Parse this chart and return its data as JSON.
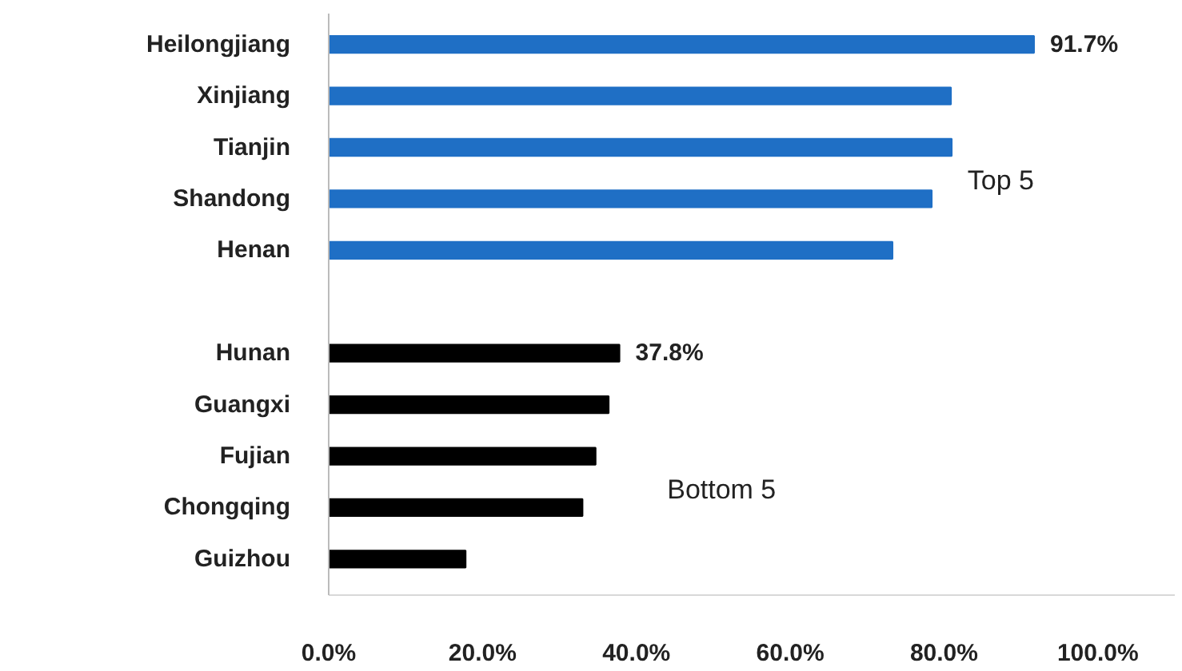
{
  "chart_data": {
    "type": "bar",
    "orientation": "horizontal",
    "categories": [
      "Heilongjiang",
      "Xinjiang",
      "Tianjin",
      "Shandong",
      "Henan",
      null,
      "Hunan",
      "Guangxi",
      "Fujian",
      "Chongqing",
      "Guizhou"
    ],
    "values": [
      91.7,
      80.9,
      81.0,
      78.4,
      73.3,
      null,
      37.8,
      36.4,
      34.7,
      33.0,
      17.8
    ],
    "colors": [
      "#1f6fc5",
      "#1f6fc5",
      "#1f6fc5",
      "#1f6fc5",
      "#1f6fc5",
      null,
      "#000000",
      "#000000",
      "#000000",
      "#000000",
      "#000000"
    ],
    "value_labels": [
      "91.7%",
      null,
      null,
      null,
      null,
      null,
      "37.8%",
      null,
      null,
      null,
      null
    ],
    "xlim": [
      0,
      110
    ],
    "xticks": [
      {
        "value": 0,
        "label": "0.0%"
      },
      {
        "value": 20,
        "label": "20.0%"
      },
      {
        "value": 40,
        "label": "40.0%"
      },
      {
        "value": 60,
        "label": "60.0%"
      },
      {
        "value": 80,
        "label": "80.0%"
      },
      {
        "value": 100,
        "label": "100.0%"
      }
    ],
    "annotations": [
      "Top 5",
      "Bottom 5"
    ],
    "grid": false
  }
}
